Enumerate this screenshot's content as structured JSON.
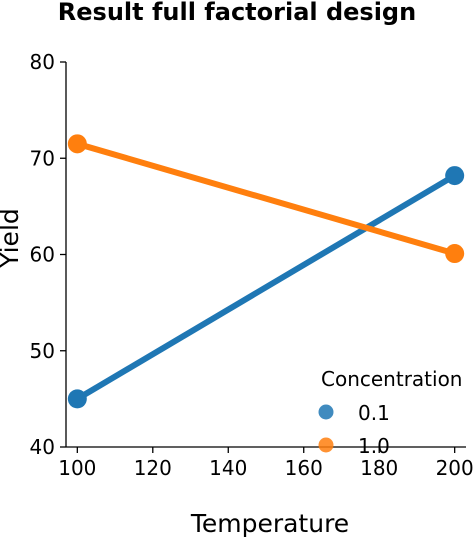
{
  "chart_data": {
    "type": "line",
    "title": "Result full factorial design",
    "xlabel": "Temperature",
    "ylabel": "Yield",
    "x": [
      100,
      200
    ],
    "xlim": [
      97,
      203
    ],
    "ylim": [
      40,
      80
    ],
    "xticks": [
      100,
      120,
      140,
      160,
      180,
      200
    ],
    "yticks": [
      40,
      50,
      60,
      70,
      80
    ],
    "grid": false,
    "legend": {
      "title": "Concentration",
      "placement": "lower-right"
    },
    "series": [
      {
        "name": "0.1",
        "color": "#1f77b4",
        "values": [
          45.0,
          68.2
        ]
      },
      {
        "name": "1.0",
        "color": "#ff7f0e",
        "values": [
          71.5,
          60.1
        ]
      }
    ]
  }
}
